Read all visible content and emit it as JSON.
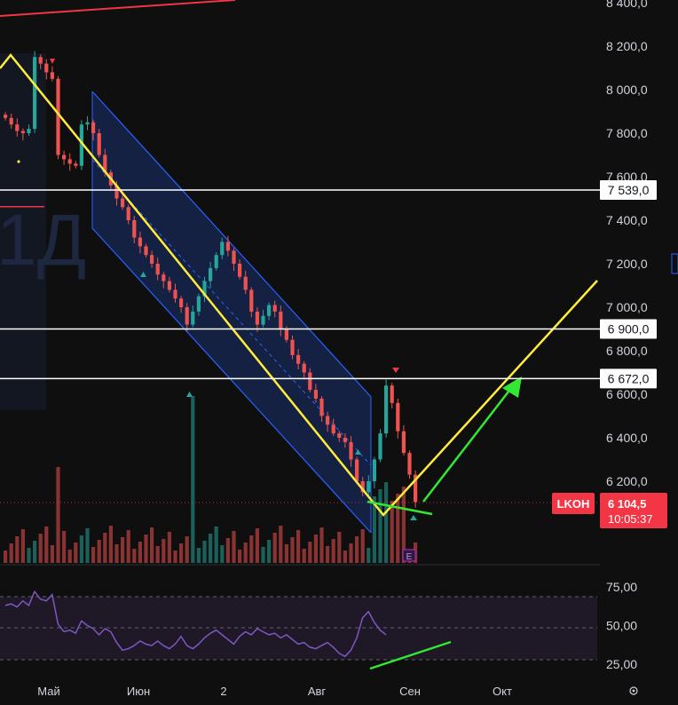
{
  "watermark": "1Д",
  "price_axis": {
    "ticks": [
      "8 400,0",
      "8 200,0",
      "8 000,0",
      "7 800,0",
      "7 600,0",
      "7 400,0",
      "7 200,0",
      "7 000,0",
      "6 800,0",
      "6 600,0",
      "6 400,0",
      "6 200,0"
    ],
    "tick_values": [
      8400,
      8200,
      8000,
      7800,
      7600,
      7400,
      7200,
      7000,
      6800,
      6600,
      6400,
      6200
    ],
    "ylim": [
      5820,
      8460
    ]
  },
  "time_axis": {
    "labels": [
      "Май",
      "Июн",
      "2",
      "Авг",
      "Сен",
      "Окт"
    ]
  },
  "level_lines": [
    {
      "value": 7539,
      "label": "7 539,0",
      "color": "#ffffff"
    },
    {
      "value": 6900,
      "label": "6 900,0",
      "color": "#ffffff"
    },
    {
      "value": 6672,
      "label": "6 672,0",
      "color": "#ffffff"
    }
  ],
  "last_price": {
    "ticker": "LKOH",
    "price": "6 104,5",
    "countdown": "10:05:37",
    "value": 6104.5,
    "color": "#f23645"
  },
  "rsi_axis": {
    "ticks": [
      "75,00",
      "50,00",
      "25,00"
    ],
    "tick_values": [
      75,
      50,
      25
    ],
    "ylim": [
      14,
      90
    ]
  },
  "earnings_badge": "E",
  "colors": {
    "up": "#26a69a",
    "down": "#ef5350",
    "channel": "#2962ff",
    "zigzag": "#ffeb3b",
    "arrow": "#33e833",
    "rsi": "#7e57c2"
  },
  "chart_data": {
    "type": "candlestick",
    "price_close_approx": [
      7870,
      7840,
      7810,
      7800,
      7820,
      8150,
      8120,
      8080,
      8050,
      7700,
      7680,
      7660,
      7650,
      7840,
      7850,
      7800,
      7700,
      7620,
      7560,
      7500,
      7460,
      7400,
      7320,
      7280,
      7240,
      7200,
      7150,
      7120,
      7080,
      7040,
      7000,
      6920,
      6980,
      7050,
      7120,
      7180,
      7240,
      7300,
      7260,
      7200,
      7140,
      7080,
      6980,
      6920,
      6960,
      7010,
      6980,
      6900,
      6850,
      6780,
      6740,
      6700,
      6620,
      6580,
      6500,
      6460,
      6420,
      6400,
      6380,
      6300,
      6200,
      6150,
      6200,
      6300,
      6420,
      6640,
      6560,
      6430,
      6330,
      6230,
      6104.5
    ],
    "levels": [
      7539,
      6900,
      6672
    ],
    "last": 6104.5,
    "rsi_range": [
      25,
      75
    ]
  }
}
